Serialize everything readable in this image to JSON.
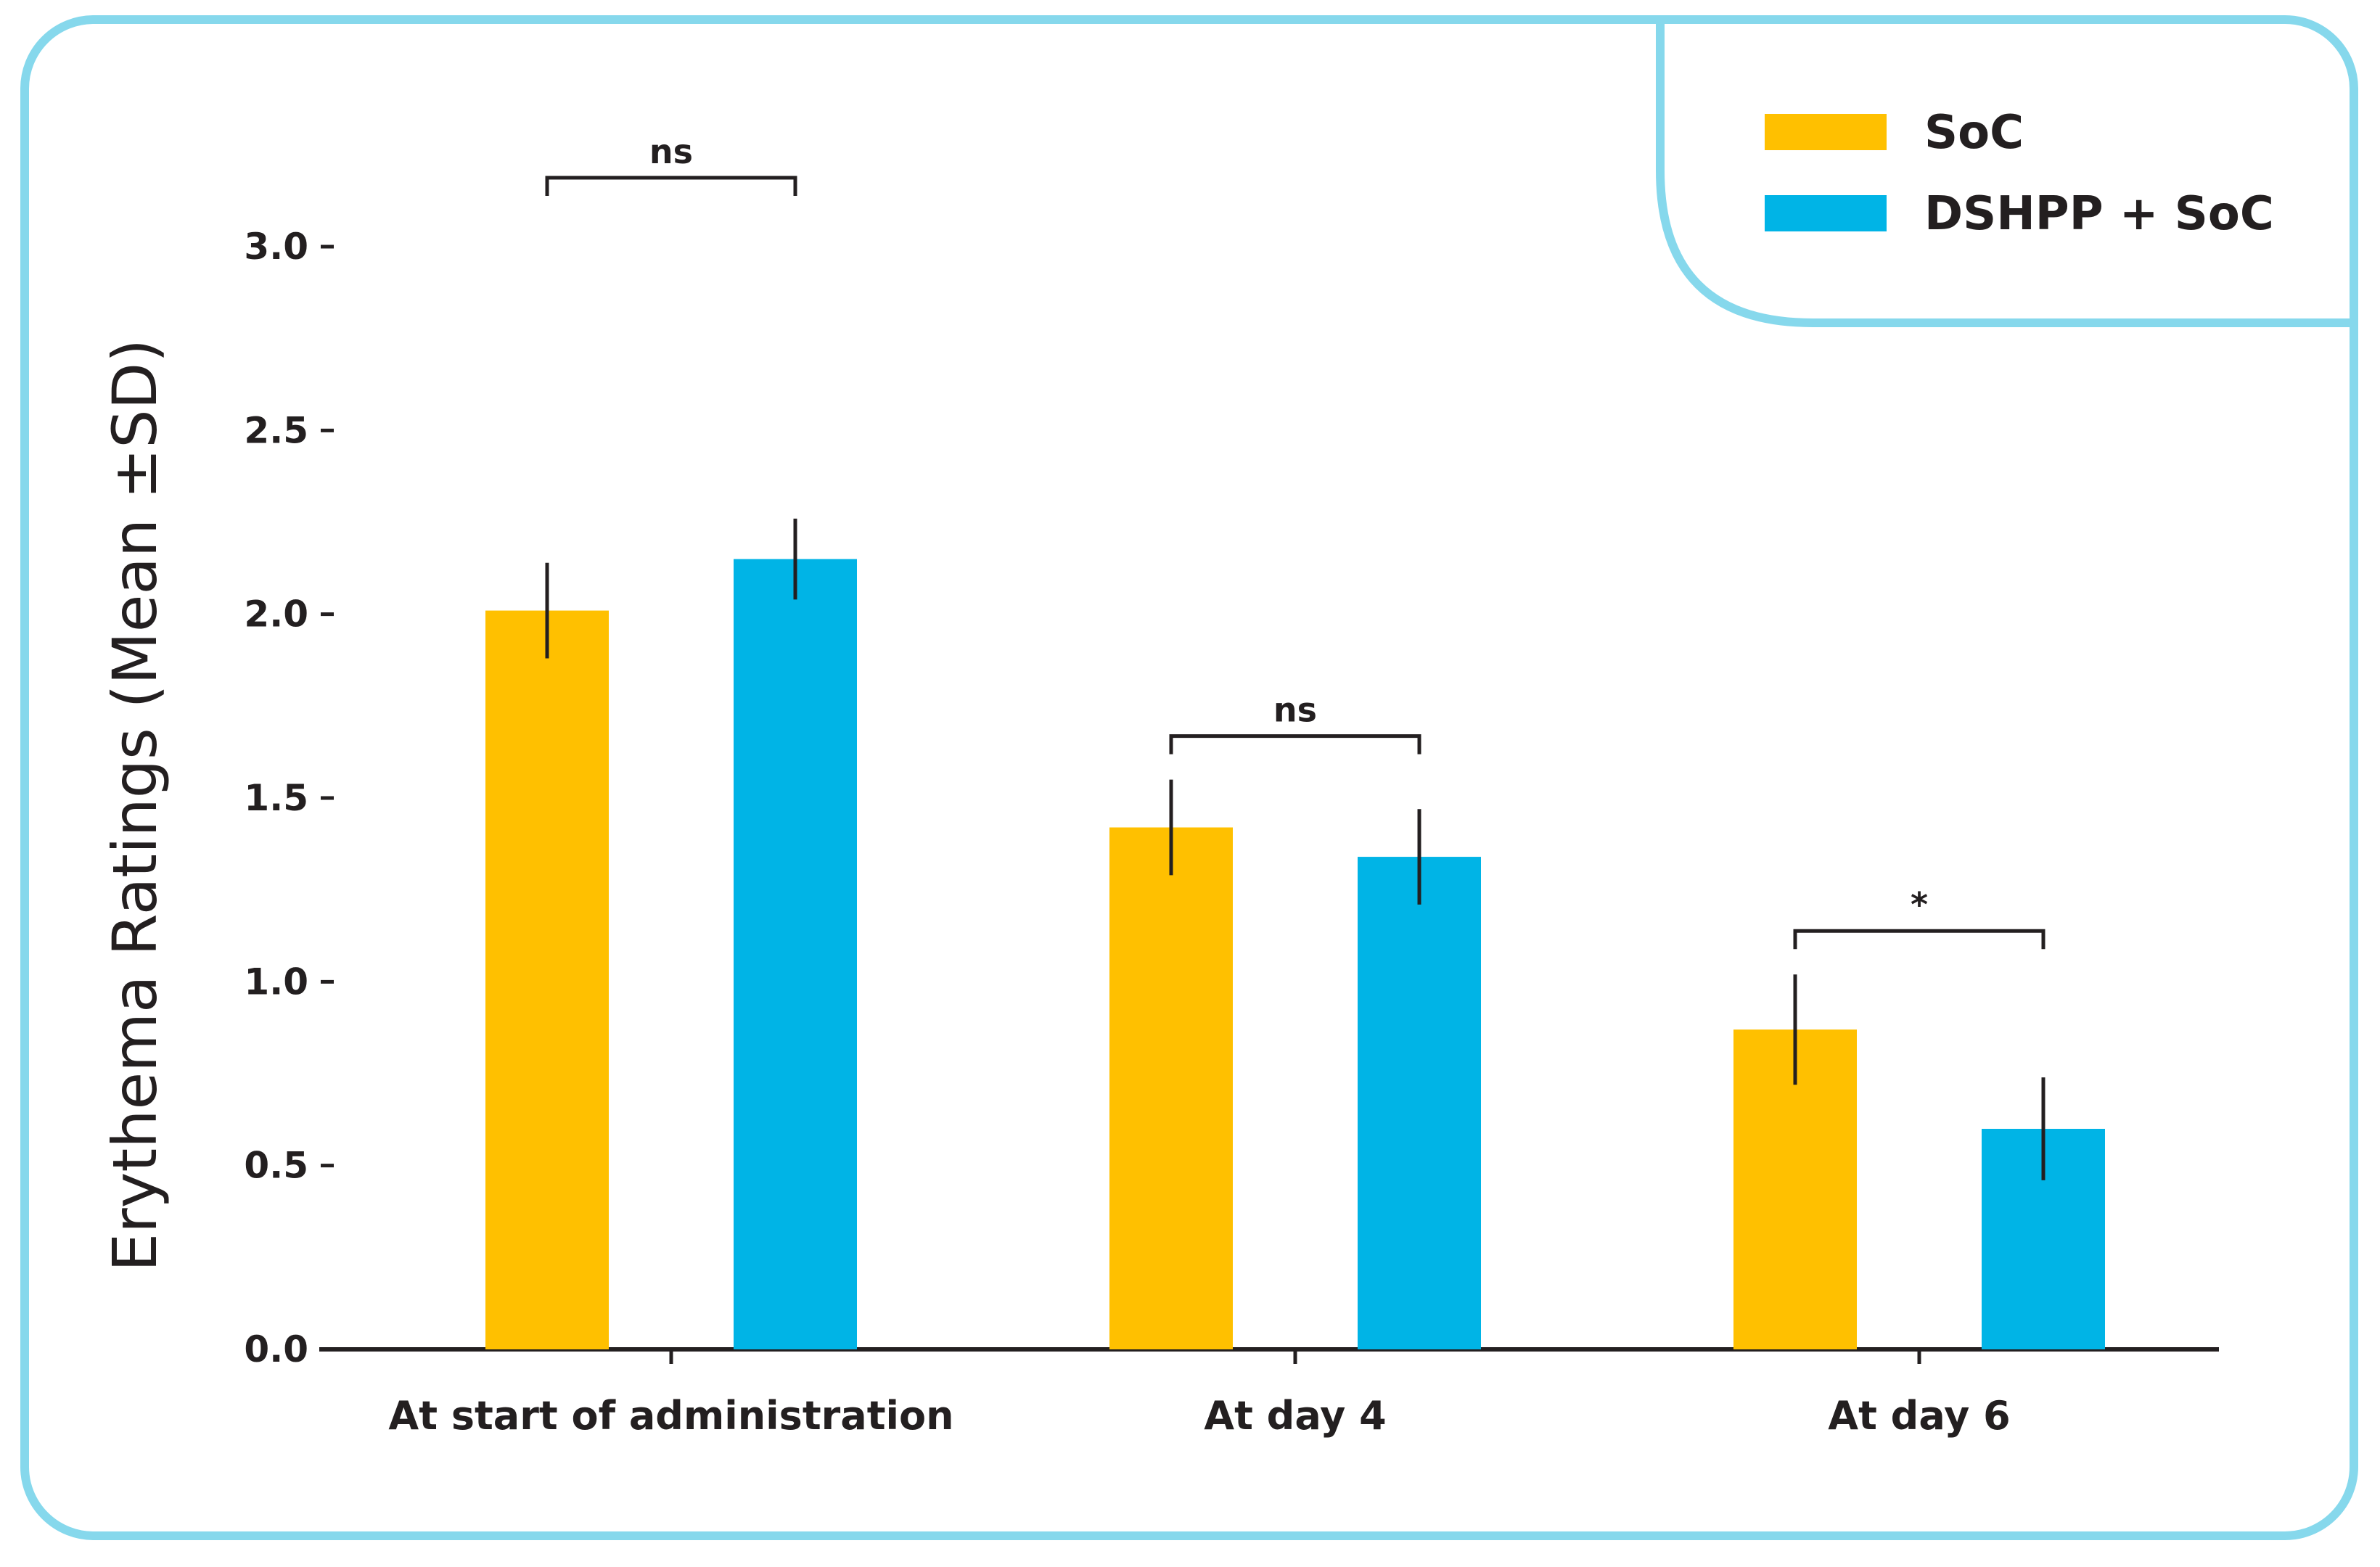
{
  "chart_data": {
    "type": "bar",
    "title": "",
    "xlabel": "",
    "ylabel": "Erythema Ratings (Mean ±SD)",
    "ylim": [
      0,
      3.0
    ],
    "yticks": [
      "0.0",
      "0.5",
      "1.0",
      "1.5",
      "2.0",
      "2.5",
      "3.0"
    ],
    "categories": [
      "At start of administration",
      "At day 4",
      "At day 6"
    ],
    "series": [
      {
        "name": "SoC",
        "color": "#ffc000",
        "values": [
          2.01,
          1.42,
          0.87
        ],
        "sd": [
          0.13,
          0.13,
          0.15
        ]
      },
      {
        "name": "DSHPP + SoC",
        "color": "#00b4e6",
        "values": [
          2.15,
          1.34,
          0.6
        ],
        "sd": [
          0.11,
          0.13,
          0.14
        ]
      }
    ],
    "significance": [
      "ns",
      "ns",
      "*"
    ],
    "legend_position": "top-right",
    "frame_color": "#86d8ec",
    "axis_color": "#231f20"
  }
}
